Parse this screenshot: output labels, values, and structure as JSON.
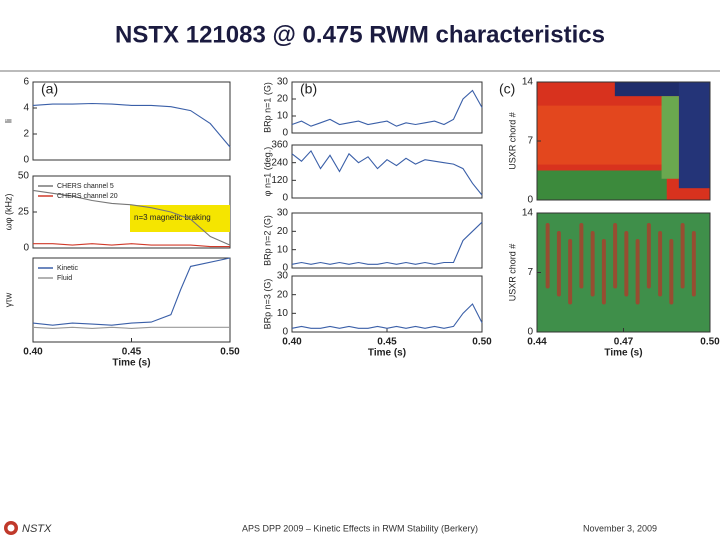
{
  "title": "NSTX 121083 @ 0.475 RWM characteristics",
  "footer": {
    "logo": "NSTX",
    "center": "APS DPP 2009 – Kinetic Effects in RWM Stability (Berkery)",
    "date": "November 3, 2009"
  },
  "chart_data": [
    {
      "type": "line",
      "panel_label": "(a)",
      "ylabel": "li",
      "xlim": [
        0.4,
        0.5
      ],
      "ylim": [
        0,
        6
      ],
      "yticks": [
        0,
        2,
        4,
        6
      ],
      "x": [
        0.4,
        0.41,
        0.42,
        0.43,
        0.44,
        0.45,
        0.46,
        0.47,
        0.48,
        0.49,
        0.5
      ],
      "series": [
        {
          "color": "#3a5fa8",
          "values": [
            4.2,
            4.3,
            4.3,
            4.35,
            4.3,
            4.2,
            4.2,
            4.1,
            3.8,
            2.8,
            1.0
          ]
        }
      ]
    },
    {
      "type": "line",
      "ylabel": "ωφ (kHz)",
      "xlim": [
        0.4,
        0.5
      ],
      "ylim": [
        0,
        50
      ],
      "yticks": [
        0,
        25,
        50
      ],
      "annotation": "n=3 magnetic braking",
      "x": [
        0.4,
        0.41,
        0.42,
        0.43,
        0.44,
        0.45,
        0.46,
        0.47,
        0.48,
        0.49,
        0.5
      ],
      "series": [
        {
          "name": "CHERS channel 5",
          "color": "#777777",
          "values": [
            40,
            38,
            36,
            33,
            31,
            30,
            28,
            25,
            20,
            8,
            2
          ]
        },
        {
          "name": "CHERS channel 20",
          "color": "#d03a2a",
          "values": [
            3,
            3,
            2,
            3,
            2,
            3,
            2,
            2,
            2,
            1,
            1
          ]
        }
      ]
    },
    {
      "type": "line",
      "ylabel": "γτw",
      "xlim": [
        0.4,
        0.5
      ],
      "ylim": [
        -1,
        3
      ],
      "xlabel": "Time (s)",
      "xticks": [
        {
          "value": 0.4,
          "label": "0.40"
        },
        0.45,
        {
          "value": 0.5,
          "label": "0.50"
        }
      ],
      "x": [
        0.4,
        0.41,
        0.42,
        0.43,
        0.44,
        0.45,
        0.46,
        0.47,
        0.475,
        0.48,
        0.5
      ],
      "series": [
        {
          "name": "Kinetic",
          "color": "#3a5fa8",
          "values": [
            -0.1,
            -0.2,
            -0.1,
            -0.15,
            -0.2,
            -0.1,
            -0.05,
            0.3,
            1.5,
            2.6,
            3.0
          ]
        },
        {
          "name": "Fluid",
          "color": "#999999",
          "values": [
            -0.3,
            -0.35,
            -0.3,
            -0.35,
            -0.3,
            -0.35,
            -0.3,
            -0.3,
            -0.3,
            -0.3,
            -0.3
          ]
        }
      ]
    },
    {
      "type": "line",
      "panel_label": "(b)",
      "ylabel": "BRp n=1 (G)",
      "xlim": [
        0.4,
        0.5
      ],
      "ylim": [
        0,
        30
      ],
      "yticks": [
        0,
        10,
        20,
        30
      ],
      "x": [
        0.4,
        0.405,
        0.41,
        0.415,
        0.42,
        0.425,
        0.43,
        0.435,
        0.44,
        0.445,
        0.45,
        0.455,
        0.46,
        0.465,
        0.47,
        0.475,
        0.48,
        0.485,
        0.49,
        0.495,
        0.5
      ],
      "series": [
        {
          "color": "#3a5fa8",
          "values": [
            5,
            7,
            4,
            6,
            8,
            5,
            6,
            7,
            5,
            6,
            7,
            4,
            6,
            5,
            6,
            7,
            5,
            8,
            20,
            25,
            15
          ]
        }
      ]
    },
    {
      "type": "line",
      "ylabel": "φ n=1 (deg.)",
      "xlim": [
        0.4,
        0.5
      ],
      "ylim": [
        0,
        360
      ],
      "yticks": [
        0,
        120,
        240,
        360
      ],
      "x": [
        0.4,
        0.405,
        0.41,
        0.415,
        0.42,
        0.425,
        0.43,
        0.435,
        0.44,
        0.445,
        0.45,
        0.455,
        0.46,
        0.465,
        0.47,
        0.475,
        0.48,
        0.485,
        0.49,
        0.495,
        0.5
      ],
      "series": [
        {
          "color": "#3a5fa8",
          "values": [
            300,
            250,
            320,
            200,
            290,
            180,
            300,
            240,
            280,
            200,
            260,
            220,
            270,
            230,
            260,
            250,
            240,
            230,
            200,
            100,
            20
          ]
        }
      ]
    },
    {
      "type": "line",
      "ylabel": "BRp n=2 (G)",
      "xlim": [
        0.4,
        0.5
      ],
      "ylim": [
        0,
        30
      ],
      "yticks": [
        0,
        10,
        20,
        30
      ],
      "x": [
        0.4,
        0.405,
        0.41,
        0.415,
        0.42,
        0.425,
        0.43,
        0.435,
        0.44,
        0.445,
        0.45,
        0.455,
        0.46,
        0.465,
        0.47,
        0.475,
        0.48,
        0.485,
        0.49,
        0.495,
        0.5
      ],
      "series": [
        {
          "color": "#3a5fa8",
          "values": [
            2,
            3,
            2,
            3,
            2,
            3,
            2,
            3,
            2,
            2,
            3,
            2,
            3,
            2,
            3,
            2,
            3,
            3,
            15,
            20,
            25
          ]
        }
      ]
    },
    {
      "type": "line",
      "ylabel": "BRp n=3 (G)",
      "xlim": [
        0.4,
        0.5
      ],
      "ylim": [
        0,
        30
      ],
      "yticks": [
        0,
        10,
        20,
        30
      ],
      "xlabel": "Time (s)",
      "xticks": [
        {
          "value": 0.4,
          "label": "0.40"
        },
        0.45,
        {
          "value": 0.5,
          "label": "0.50"
        }
      ],
      "x": [
        0.4,
        0.405,
        0.41,
        0.415,
        0.42,
        0.425,
        0.43,
        0.435,
        0.44,
        0.445,
        0.45,
        0.455,
        0.46,
        0.465,
        0.47,
        0.475,
        0.48,
        0.485,
        0.49,
        0.495,
        0.5
      ],
      "series": [
        {
          "color": "#3a5fa8",
          "values": [
            2,
            3,
            2,
            2,
            3,
            2,
            3,
            2,
            2,
            3,
            2,
            3,
            2,
            3,
            2,
            3,
            2,
            3,
            10,
            15,
            5
          ]
        }
      ]
    },
    {
      "type": "heatmap",
      "panel_label": "(c)",
      "ylabel": "USXR chord #",
      "xlim": [
        0.44,
        0.5
      ],
      "ylim": [
        0,
        14
      ],
      "yticks": [
        0,
        7,
        14
      ]
    },
    {
      "type": "heatmap2",
      "ylabel": "USXR chord #",
      "xlim": [
        0.44,
        0.5
      ],
      "ylim": [
        0,
        14
      ],
      "yticks": [
        0,
        7,
        14
      ],
      "xlabel": "Time (s)",
      "xticks": [
        0.44,
        0.47,
        {
          "value": 0.5,
          "label": "0.50"
        }
      ]
    }
  ]
}
